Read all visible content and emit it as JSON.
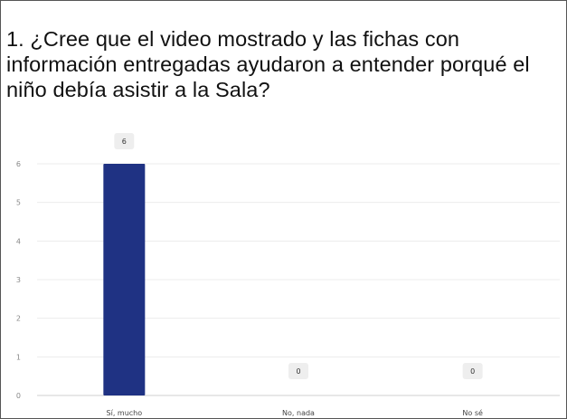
{
  "title": "1. ¿Cree que el video mostrado y las fichas con información entregadas ayudaron a entender porqué el niño debía asistir a la Sala?",
  "chart_data": {
    "type": "bar",
    "title": "1. ¿Cree que el video mostrado y las fichas con información entregadas ayudaron a entender porqué el niño debía asistir a la Sala?",
    "categories": [
      "Sí, mucho",
      "No, nada",
      "No sé"
    ],
    "values": [
      6,
      0,
      0
    ],
    "ylim": [
      0,
      6
    ],
    "yticks": [
      0,
      1,
      2,
      3,
      4,
      5,
      6
    ],
    "xlabel": "",
    "ylabel": "",
    "grid": true,
    "data_labels": true,
    "bar_color": "#1f3283"
  }
}
